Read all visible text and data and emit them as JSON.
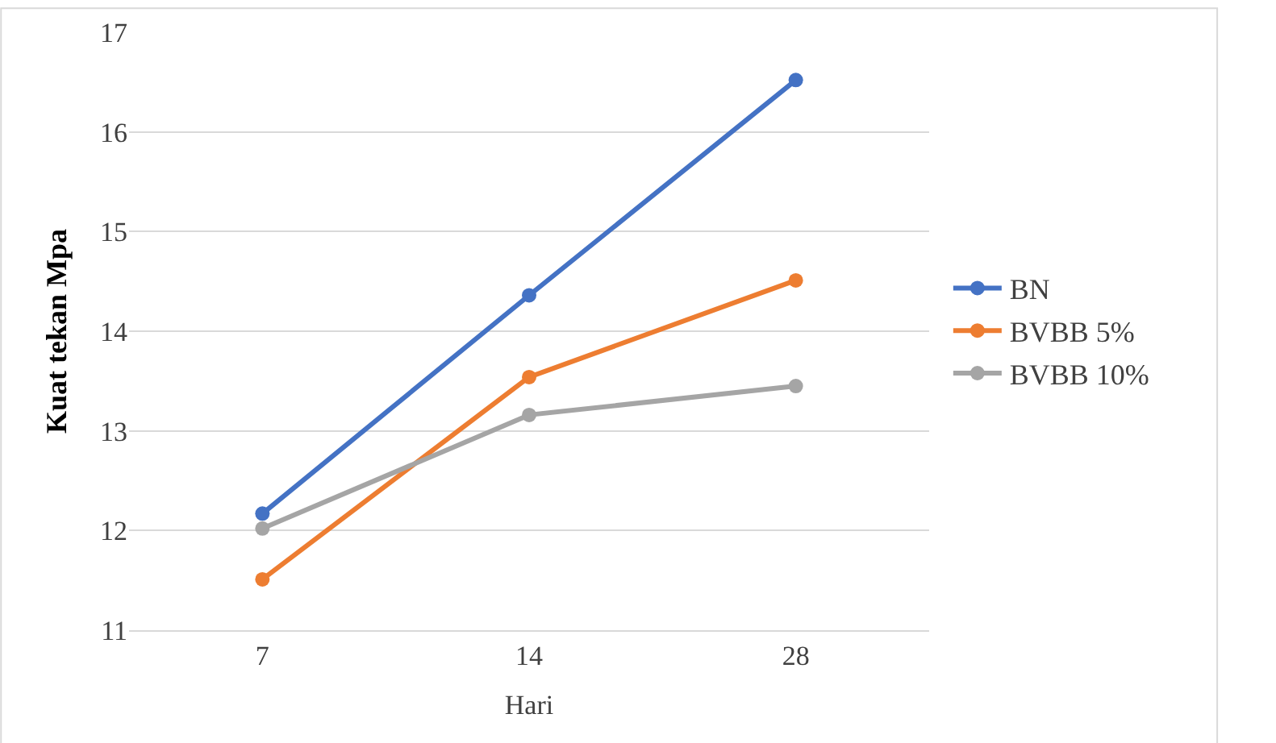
{
  "chart_data": {
    "type": "line",
    "xlabel": "Hari",
    "ylabel": "Kuat tekan Mpa",
    "categories": [
      "7",
      "14",
      "28"
    ],
    "series": [
      {
        "name": "BN",
        "color": "#4472c4",
        "values": [
          12.17,
          14.36,
          16.52
        ]
      },
      {
        "name": "BVBB 5%",
        "color": "#ed7d31",
        "values": [
          11.51,
          13.54,
          14.51
        ]
      },
      {
        "name": "BVBB 10%",
        "color": "#a5a5a5",
        "values": [
          12.02,
          13.16,
          13.45
        ]
      }
    ],
    "ylim": [
      11,
      17
    ],
    "yticks": [
      11,
      12,
      13,
      14,
      15,
      16,
      17
    ],
    "grid": "y",
    "legend": "right",
    "marker": "circle",
    "line_style": "solid"
  }
}
